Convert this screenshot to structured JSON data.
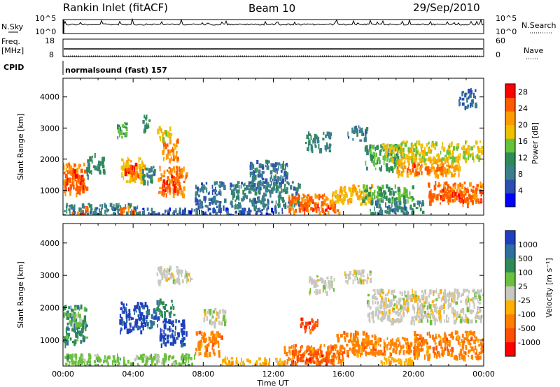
{
  "header": {
    "title": "Rankin Inlet (fitACF)",
    "beam": "Beam 10",
    "date": "29/Sep/2010"
  },
  "status_panels": {
    "nsky_label": "N.Sky",
    "nsky_ticks": [
      "10^5",
      "10^0"
    ],
    "nsearch_label": "N.Search",
    "freq_label": "Freq.",
    "freq_unit": "[MHz]",
    "freq_ticks": [
      "18",
      "8"
    ],
    "nave_label": "Nave",
    "nave_ticks": [
      "60",
      "0"
    ],
    "cpid_label": "CPID",
    "cpid_value": "normalsound (fast) 157"
  },
  "colors": {
    "power_scale": [
      "#0000ff",
      "#2b4fb0",
      "#3c7f8c",
      "#2e8b57",
      "#66c23a",
      "#f0c000",
      "#ff9a00",
      "#ff5a00",
      "#ff0000"
    ],
    "velocity_scale": [
      "#1f3fbf",
      "#2f6fa0",
      "#2e8b57",
      "#6cc040",
      "#c8c8c0",
      "#ffb000",
      "#ff8000",
      "#ff5000",
      "#ff0000"
    ]
  },
  "chart_data": [
    {
      "type": "heatmap",
      "name": "power",
      "xlabel": "",
      "ylabel": "Slant Range [km]",
      "x_range_hours": [
        0,
        24
      ],
      "ylim": [
        200,
        4600
      ],
      "yticks": [
        "1000",
        "2000",
        "3000",
        "4000"
      ],
      "colorbar_label": "Power [dB]",
      "colorbar_ticks": [
        "4",
        "8",
        "12",
        "16",
        "20",
        "24",
        "28"
      ],
      "colorbar_range": [
        0,
        30
      ],
      "patches": [
        {
          "t0": 0.0,
          "t1": 1.3,
          "r0": 900,
          "r1": 1900,
          "v": 26
        },
        {
          "t0": 0.1,
          "t1": 1.2,
          "r0": 1000,
          "r1": 1700,
          "v": 29
        },
        {
          "t0": 1.3,
          "t1": 2.3,
          "r0": 1500,
          "r1": 2200,
          "v": 12
        },
        {
          "t0": 0.0,
          "t1": 4.3,
          "r0": 200,
          "r1": 600,
          "v": 10
        },
        {
          "t0": 0.4,
          "t1": 1.5,
          "r0": 200,
          "r1": 500,
          "v": 28
        },
        {
          "t0": 3.2,
          "t1": 4.1,
          "r0": 200,
          "r1": 500,
          "v": 27
        },
        {
          "t0": 3.2,
          "t1": 4.6,
          "r0": 1300,
          "r1": 2100,
          "v": 22
        },
        {
          "t0": 3.5,
          "t1": 4.3,
          "r0": 1500,
          "r1": 1900,
          "v": 28
        },
        {
          "t0": 4.5,
          "t1": 5.2,
          "r0": 1300,
          "r1": 1800,
          "v": 10
        },
        {
          "t0": 5.4,
          "t1": 7.0,
          "r0": 900,
          "r1": 1800,
          "v": 26
        },
        {
          "t0": 5.6,
          "t1": 6.6,
          "r0": 1000,
          "r1": 1500,
          "v": 29
        },
        {
          "t0": 5.6,
          "t1": 6.5,
          "r0": 2000,
          "r1": 2700,
          "v": 25
        },
        {
          "t0": 5.3,
          "t1": 6.2,
          "r0": 2700,
          "r1": 3100,
          "v": 20
        },
        {
          "t0": 3.0,
          "t1": 3.6,
          "r0": 2700,
          "r1": 3200,
          "v": 16
        },
        {
          "t0": 4.5,
          "t1": 4.9,
          "r0": 2900,
          "r1": 3500,
          "v": 14
        },
        {
          "t0": 7.5,
          "t1": 9.2,
          "r0": 500,
          "r1": 1300,
          "v": 8
        },
        {
          "t0": 4.3,
          "t1": 12.5,
          "r0": 200,
          "r1": 450,
          "v": 6
        },
        {
          "t0": 9.5,
          "t1": 13.5,
          "r0": 500,
          "r1": 1300,
          "v": 10
        },
        {
          "t0": 10.5,
          "t1": 12.8,
          "r0": 1200,
          "r1": 2000,
          "v": 9
        },
        {
          "t0": 12.8,
          "t1": 15.8,
          "r0": 300,
          "r1": 900,
          "v": 27
        },
        {
          "t0": 13.5,
          "t1": 15.5,
          "r0": 400,
          "r1": 700,
          "v": 29
        },
        {
          "t0": 15.3,
          "t1": 17.6,
          "r0": 600,
          "r1": 1200,
          "v": 22
        },
        {
          "t0": 17.0,
          "t1": 20.0,
          "r0": 700,
          "r1": 1200,
          "v": 15
        },
        {
          "t0": 13.8,
          "t1": 15.2,
          "r0": 2300,
          "r1": 2900,
          "v": 11
        },
        {
          "t0": 16.2,
          "t1": 17.3,
          "r0": 2600,
          "r1": 3100,
          "v": 9
        },
        {
          "t0": 17.2,
          "t1": 19.3,
          "r0": 1700,
          "r1": 2500,
          "v": 14
        },
        {
          "t0": 19.0,
          "t1": 22.6,
          "r0": 1500,
          "r1": 2100,
          "v": 23
        },
        {
          "t0": 19.5,
          "t1": 22.0,
          "r0": 1600,
          "r1": 1900,
          "v": 28
        },
        {
          "t0": 18.2,
          "t1": 23.9,
          "r0": 2000,
          "r1": 2600,
          "v": 20
        },
        {
          "t0": 20.8,
          "t1": 23.9,
          "r0": 600,
          "r1": 1300,
          "v": 27
        },
        {
          "t0": 21.5,
          "t1": 23.9,
          "r0": 700,
          "r1": 1100,
          "v": 29
        },
        {
          "t0": 17.5,
          "t1": 20.5,
          "r0": 300,
          "r1": 700,
          "v": 10
        },
        {
          "t0": 22.5,
          "t1": 23.5,
          "r0": 3700,
          "r1": 4300,
          "v": 8
        }
      ]
    },
    {
      "type": "heatmap",
      "name": "velocity",
      "xlabel": "Time UT",
      "ylabel": "Slant Range [km]",
      "x_range_hours": [
        0,
        24
      ],
      "ylim": [
        200,
        4600
      ],
      "xticks": [
        "00:00",
        "04:00",
        "08:00",
        "12:00",
        "16:00",
        "20:00",
        "00:00"
      ],
      "yticks": [
        "1000",
        "2000",
        "3000",
        "4000"
      ],
      "colorbar_label": "Velocity [m s⁻¹]",
      "colorbar_ticks": [
        "1000",
        "500",
        "100",
        "25",
        "-25",
        "-100",
        "-500",
        "-1000"
      ],
      "patches": [
        {
          "t0": 0.0,
          "t1": 1.3,
          "r0": 900,
          "r1": 2100,
          "v": 2
        },
        {
          "t0": 0.2,
          "t1": 1.0,
          "r0": 1500,
          "r1": 1900,
          "v": 3
        },
        {
          "t0": 3.2,
          "t1": 4.8,
          "r0": 1300,
          "r1": 2200,
          "v": 0
        },
        {
          "t0": 4.8,
          "t1": 5.5,
          "r0": 1400,
          "r1": 2000,
          "v": 1
        },
        {
          "t0": 5.5,
          "t1": 7.0,
          "r0": 900,
          "r1": 1700,
          "v": 0
        },
        {
          "t0": 5.3,
          "t1": 6.3,
          "r0": 1800,
          "r1": 2300,
          "v": 2
        },
        {
          "t0": 5.3,
          "t1": 7.3,
          "r0": 2800,
          "r1": 3300,
          "v": 4
        },
        {
          "t0": 7.5,
          "t1": 9.0,
          "r0": 600,
          "r1": 1300,
          "v": 6
        },
        {
          "t0": 8.0,
          "t1": 9.2,
          "r0": 1500,
          "r1": 2000,
          "v": 4
        },
        {
          "t0": 0.0,
          "t1": 7.5,
          "r0": 200,
          "r1": 600,
          "v": 3
        },
        {
          "t0": 9.0,
          "t1": 12.5,
          "r0": 200,
          "r1": 500,
          "v": 5
        },
        {
          "t0": 12.5,
          "t1": 16.0,
          "r0": 250,
          "r1": 900,
          "v": 6
        },
        {
          "t0": 13.0,
          "t1": 15.5,
          "r0": 300,
          "r1": 700,
          "v": 7
        },
        {
          "t0": 15.5,
          "t1": 17.8,
          "r0": 600,
          "r1": 1300,
          "v": 6
        },
        {
          "t0": 17.0,
          "t1": 20.5,
          "r0": 600,
          "r1": 1100,
          "v": 6
        },
        {
          "t0": 20.0,
          "t1": 23.9,
          "r0": 500,
          "r1": 1300,
          "v": 6
        },
        {
          "t0": 17.3,
          "t1": 23.9,
          "r0": 1600,
          "r1": 2600,
          "v": 4
        },
        {
          "t0": 14.0,
          "t1": 15.5,
          "r0": 2500,
          "r1": 3000,
          "v": 4
        },
        {
          "t0": 16.0,
          "t1": 17.5,
          "r0": 2800,
          "r1": 3200,
          "v": 4
        },
        {
          "t0": 18.0,
          "t1": 20.0,
          "r0": 200,
          "r1": 500,
          "v": 5
        },
        {
          "t0": 13.5,
          "t1": 14.5,
          "r0": 1300,
          "r1": 1700,
          "v": 7
        }
      ]
    }
  ]
}
